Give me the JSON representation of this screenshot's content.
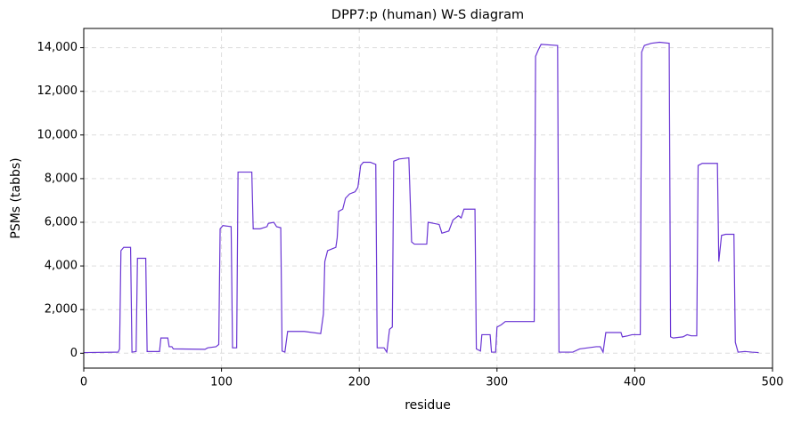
{
  "chart_data": {
    "type": "line",
    "title": "DPP7:p (human) W-S diagram",
    "xlabel": "residue",
    "ylabel": "PSMs (tabbs)",
    "color": "#6a35d4",
    "grid": true,
    "xlim": [
      0,
      500
    ],
    "xticks": [
      0,
      100,
      200,
      300,
      400,
      500
    ],
    "ylim": [
      -680,
      14880
    ],
    "yticks": [
      0,
      {
        "value": 2000,
        "label": "2,000"
      },
      {
        "value": 4000,
        "label": "4,000"
      },
      {
        "value": 6000,
        "label": "6,000"
      },
      {
        "value": 8000,
        "label": "8,000"
      },
      {
        "value": 10000,
        "label": "10,000"
      },
      {
        "value": 12000,
        "label": "12,000"
      },
      {
        "value": 14000,
        "label": "14,000"
      }
    ],
    "x": [
      0,
      25,
      26,
      27,
      29,
      34,
      35,
      38,
      39,
      45,
      46,
      55,
      56,
      61,
      62,
      64,
      65,
      88,
      90,
      96,
      98,
      99,
      101,
      107,
      108,
      111,
      112,
      122,
      123,
      128,
      133,
      134,
      138,
      140,
      143,
      144,
      146,
      148,
      160,
      172,
      174,
      175,
      177,
      183,
      184,
      185,
      188,
      190,
      193,
      197,
      199,
      201,
      203,
      208,
      212,
      213,
      218,
      220,
      222,
      224,
      225,
      229,
      236,
      238,
      240,
      249,
      250,
      258,
      260,
      265,
      268,
      272,
      274,
      276,
      284,
      285,
      288,
      289,
      295,
      296,
      299,
      300,
      303,
      306,
      327,
      328,
      330,
      332,
      344,
      345,
      355,
      360,
      372,
      375,
      377,
      379,
      390,
      391,
      395,
      398,
      404,
      405,
      407,
      412,
      418,
      425,
      426,
      428,
      435,
      438,
      441,
      445,
      446,
      449,
      460,
      461,
      463,
      466,
      472,
      473,
      475,
      480,
      485,
      490
    ],
    "values": [
      30,
      50,
      200,
      4700,
      4850,
      4850,
      50,
      80,
      4350,
      4350,
      80,
      80,
      700,
      700,
      300,
      300,
      200,
      180,
      250,
      300,
      400,
      5700,
      5850,
      5800,
      250,
      250,
      8300,
      8300,
      5700,
      5700,
      5800,
      5950,
      6000,
      5800,
      5750,
      100,
      50,
      1000,
      1000,
      900,
      1800,
      4200,
      4700,
      4850,
      5300,
      6500,
      6600,
      7100,
      7300,
      7400,
      7600,
      8600,
      8750,
      8750,
      8650,
      250,
      250,
      50,
      1100,
      1200,
      8800,
      8900,
      8950,
      5100,
      5000,
      5000,
      6000,
      5900,
      5500,
      5600,
      6100,
      6300,
      6200,
      6600,
      6600,
      200,
      100,
      850,
      850,
      50,
      50,
      1200,
      1300,
      1450,
      1450,
      13600,
      13900,
      14150,
      14100,
      50,
      50,
      200,
      300,
      300,
      50,
      950,
      950,
      750,
      800,
      850,
      850,
      13800,
      14100,
      14200,
      14250,
      14200,
      750,
      700,
      750,
      850,
      800,
      800,
      8600,
      8700,
      8700,
      4200,
      5400,
      5450,
      5450,
      500,
      50,
      80,
      50,
      30
    ]
  }
}
